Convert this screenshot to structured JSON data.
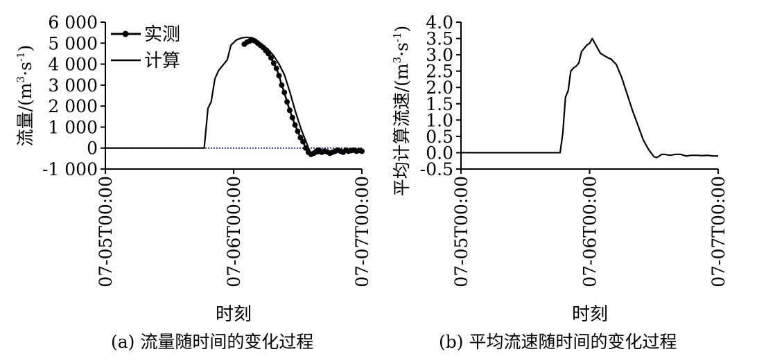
{
  "chart_data": [
    {
      "type": "line",
      "panel_label": "(a)",
      "caption": "(a) 流量随时间的变化过程",
      "ylabel": "流量/(m³·s⁻¹)",
      "ylabel_main": "流量/(m",
      "ylabel_sup1": "3",
      "ylabel_mid": "·s",
      "ylabel_sup2": "-1",
      "ylabel_end": ")",
      "xlabel": "时刻",
      "ylim": [
        -1000,
        6000
      ],
      "xlim": [
        0,
        48
      ],
      "yticks": [
        -1000,
        0,
        1000,
        2000,
        3000,
        4000,
        5000,
        6000
      ],
      "ytick_labels": [
        "-1 000",
        "0",
        "1 000",
        "2 000",
        "3 000",
        "4 000",
        "5 000",
        "6 000"
      ],
      "xticks": [
        0,
        24,
        48
      ],
      "xtick_labels": [
        "07-05T00:00",
        "07-06T00:00",
        "07-07T00:00"
      ],
      "legend_position": "top-left",
      "reference_line": {
        "y": 0,
        "style": "dotted",
        "color": "#1f3a8a"
      },
      "series": [
        {
          "name": "实测",
          "marker": "circle",
          "x": [
            26,
            26.5,
            27,
            27.5,
            28,
            28.5,
            29,
            29.5,
            30,
            30.5,
            31,
            31.5,
            32,
            32.5,
            33,
            33.5,
            34,
            34.5,
            35,
            35.5,
            36,
            36.5,
            37,
            37.5,
            38,
            38.5,
            39,
            39.5,
            40,
            40.5,
            41,
            41.5,
            42,
            42.5,
            43,
            43.5,
            44,
            44.5,
            45,
            45.5,
            46,
            46.5,
            47,
            47.5,
            48
          ],
          "y": [
            4950,
            5050,
            5100,
            5150,
            5100,
            5000,
            4900,
            4800,
            4650,
            4500,
            4300,
            4050,
            3800,
            3450,
            3000,
            2650,
            2200,
            1800,
            1450,
            1100,
            800,
            500,
            300,
            0,
            -200,
            -300,
            -250,
            -150,
            -100,
            -200,
            -150,
            -180,
            -250,
            -200,
            -150,
            -100,
            -150,
            -200,
            -100,
            -150,
            -120,
            -100,
            -150,
            -120,
            -150
          ]
        },
        {
          "name": "计算",
          "x": [
            0,
            18.5,
            19.2,
            19.8,
            20.5,
            21.2,
            22,
            22.8,
            23.5,
            24.5,
            25,
            25.5,
            26.5,
            27.5,
            28.5,
            29.5,
            30.5,
            31.5,
            32.5,
            33.5,
            34.5,
            35.5,
            36.5,
            37,
            37.5,
            38,
            38.5,
            39,
            40,
            41,
            42,
            43,
            44,
            45,
            46,
            47,
            48
          ],
          "y": [
            0,
            0,
            1900,
            2200,
            3300,
            3700,
            3950,
            4200,
            4900,
            5150,
            5200,
            5250,
            5280,
            5250,
            5100,
            4900,
            4700,
            4400,
            4000,
            3500,
            2700,
            1800,
            1000,
            650,
            350,
            0,
            -250,
            -300,
            -250,
            -150,
            -150,
            -200,
            -150,
            -120,
            -100,
            -150,
            -150
          ]
        }
      ]
    },
    {
      "type": "line",
      "panel_label": "(b)",
      "caption": "(b) 平均流速随时间的变化过程",
      "ylabel": "平均计算流速/(m³·s⁻¹)",
      "ylabel_main": "平均计算流速/(m",
      "ylabel_sup1": "3",
      "ylabel_mid": "·s",
      "ylabel_sup2": "-1",
      "ylabel_end": ")",
      "xlabel": "时刻",
      "ylim": [
        -0.5,
        4.0
      ],
      "xlim": [
        0,
        48
      ],
      "yticks": [
        -0.5,
        0,
        0.5,
        1.0,
        1.5,
        2.0,
        2.5,
        3.0,
        3.5,
        4.0
      ],
      "ytick_labels": [
        "-0.5",
        "0.0",
        "0.5",
        "1.0",
        "1.5",
        "2.0",
        "2.5",
        "3.0",
        "3.5",
        "4.0"
      ],
      "xticks": [
        0,
        24,
        48
      ],
      "xtick_labels": [
        "07-05T00:00",
        "07-06T00:00",
        "07-07T00:00"
      ],
      "series": [
        {
          "name": "",
          "x": [
            0,
            18.5,
            19,
            19.5,
            20,
            20.5,
            21,
            21.5,
            22,
            22.5,
            23,
            23.5,
            24,
            24.5,
            25,
            25.5,
            26,
            27,
            27.5,
            28,
            29,
            30,
            31,
            32,
            33,
            34,
            35,
            36,
            36.5,
            37,
            37.5,
            38,
            39,
            40,
            41,
            42,
            43,
            44,
            45,
            46,
            47,
            48
          ],
          "y": [
            0,
            0,
            0.6,
            1.7,
            1.9,
            2.5,
            2.6,
            2.65,
            2.75,
            3.1,
            3.2,
            3.3,
            3.35,
            3.5,
            3.35,
            3.2,
            3.05,
            2.95,
            2.9,
            2.87,
            2.7,
            2.3,
            1.8,
            1.3,
            0.85,
            0.4,
            0.1,
            -0.12,
            -0.15,
            -0.1,
            -0.05,
            -0.05,
            -0.08,
            -0.05,
            -0.05,
            -0.1,
            -0.08,
            -0.08,
            -0.09,
            -0.08,
            -0.1,
            -0.1
          ]
        }
      ]
    }
  ]
}
